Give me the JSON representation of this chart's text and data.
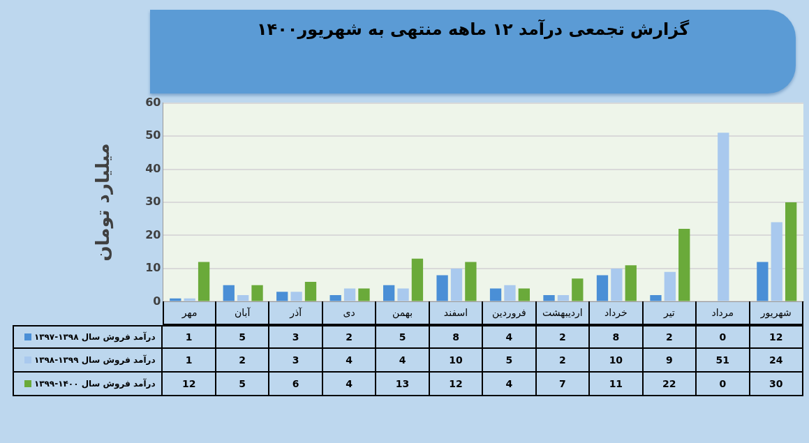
{
  "chart_data": {
    "type": "bar",
    "title": "گزارش تجمعی درآمد ۱۲ ماهه منتهی به شهریور۱۴۰۰",
    "ylabel": "میلیارد تومان",
    "categories": [
      "مهر",
      "آبان",
      "آذر",
      "دی",
      "بهمن",
      "اسفند",
      "فروردین",
      "اردیبهشت",
      "خرداد",
      "تیر",
      "مرداد",
      "شهریور"
    ],
    "series": [
      {
        "name": "درآمد فروش سال ۱۳۹۸-۱۳۹۷",
        "color": "#4a8fd6",
        "values": [
          1,
          5,
          3,
          2,
          5,
          8,
          4,
          2,
          8,
          2,
          0,
          12
        ]
      },
      {
        "name": "درآمد فروش سال ۱۳۹۹-۱۳۹۸",
        "color": "#a9c9ee",
        "values": [
          1,
          2,
          3,
          4,
          4,
          10,
          5,
          2,
          10,
          9,
          51,
          24
        ]
      },
      {
        "name": "درآمد فروش سال ۱۴۰۰-۱۳۹۹",
        "color": "#6aaa3a",
        "values": [
          12,
          5,
          6,
          4,
          13,
          12,
          4,
          7,
          11,
          22,
          0,
          30
        ]
      }
    ],
    "ylim": [
      0,
      60
    ],
    "yticks": [
      0,
      10,
      20,
      30,
      40,
      50,
      60
    ],
    "grid": "y",
    "legend": "bottom left",
    "data_labels": true
  }
}
